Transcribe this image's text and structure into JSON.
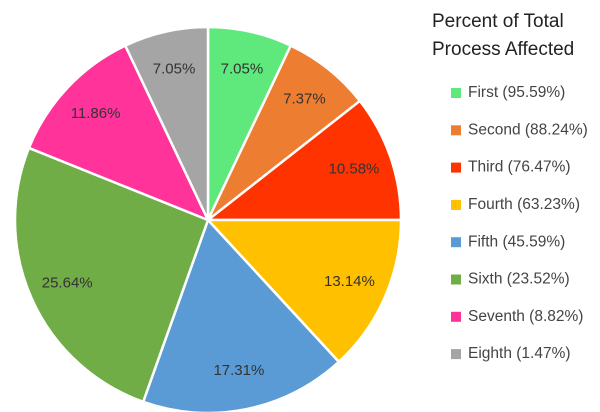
{
  "chart_data": {
    "type": "pie",
    "legend_title": "Percent of Total Process Affected",
    "categories": [
      "First (95.59%)",
      "Second (88.24%)",
      "Third (76.47%)",
      "Fourth (63.23%)",
      "Fifth (45.59%)",
      "Sixth (23.52%)",
      "Seventh (8.82%)",
      "Eighth (1.47%)"
    ],
    "values": [
      7.05,
      7.37,
      10.58,
      13.14,
      17.31,
      25.64,
      11.86,
      7.05
    ],
    "value_labels": [
      "7.05%",
      "7.37%",
      "10.58%",
      "13.14%",
      "17.31%",
      "25.64%",
      "11.86%",
      "7.05%"
    ],
    "colors": [
      "#5fe87b",
      "#ed7d31",
      "#ff3300",
      "#ffc000",
      "#5b9bd5",
      "#70ad47",
      "#ff3399",
      "#a5a5a5"
    ],
    "legend": "right"
  }
}
